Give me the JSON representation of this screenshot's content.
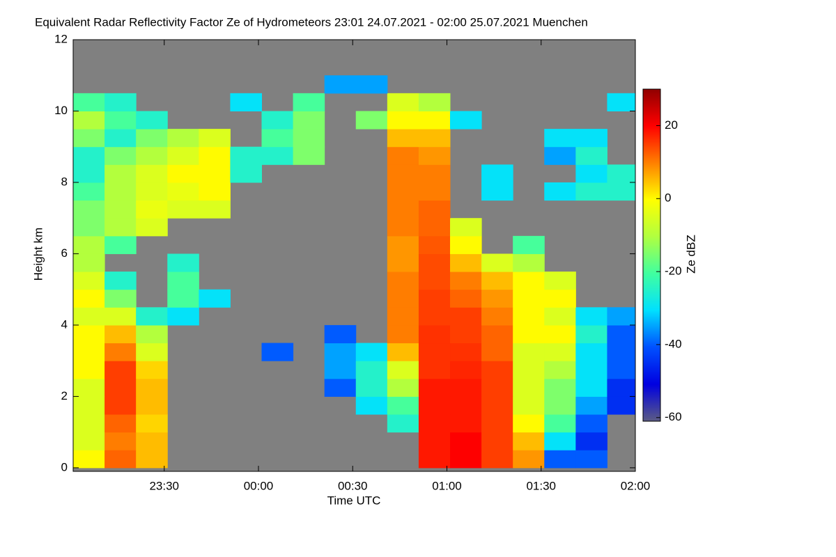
{
  "chart_data": {
    "type": "heatmap",
    "title": "Equivalent Radar Reflectivity Factor Ze of Hydrometeors   23:01 24.07.2021 - 02:00 25.07.2021 Muenchen",
    "x_label": "Time UTC",
    "y_label": "Height km",
    "colorbar_label": "Ze dBZ",
    "xlim": [
      "23:01",
      "02:00"
    ],
    "xticks": [
      "23:30",
      "00:00",
      "00:30",
      "01:00",
      "01:30",
      "02:00"
    ],
    "ylim": [
      -0.1,
      12
    ],
    "yticks": [
      0,
      2,
      4,
      6,
      8,
      10,
      12
    ],
    "zlim": [
      -61,
      30
    ],
    "zticks": [
      -60,
      -40,
      -20,
      0,
      20
    ],
    "background": "#808080",
    "colorscale": [
      "#5c5c84",
      "#0000e0",
      "#0050ff",
      "#00e0ff",
      "#40ffa0",
      "#b0ff40",
      "#ffff00",
      "#ff8000",
      "#ff0000",
      "#900000"
    ],
    "x": [
      "23:06",
      "23:16",
      "23:26",
      "23:36",
      "23:46",
      "23:56",
      "00:06",
      "00:16",
      "00:26",
      "00:36",
      "00:46",
      "00:56",
      "01:06",
      "01:16",
      "01:26",
      "01:36",
      "01:46",
      "01:56"
    ],
    "y": [
      0.25,
      0.75,
      1.25,
      1.75,
      2.25,
      2.75,
      3.25,
      3.75,
      4.25,
      4.75,
      5.25,
      5.75,
      6.25,
      6.75,
      7.25,
      7.75,
      8.25,
      8.75,
      9.25,
      9.75,
      10.25,
      10.75,
      11.25,
      11.75
    ],
    "z": [
      [
        0,
        12,
        5,
        null,
        null,
        null,
        null,
        null,
        null,
        null,
        null,
        18,
        20,
        15,
        8,
        -40,
        -40,
        null
      ],
      [
        -5,
        10,
        5,
        null,
        null,
        null,
        null,
        null,
        null,
        null,
        null,
        18,
        20,
        15,
        5,
        -30,
        -45,
        null
      ],
      [
        -5,
        12,
        3,
        null,
        null,
        null,
        null,
        null,
        null,
        null,
        -25,
        18,
        18,
        15,
        0,
        -20,
        -40,
        null
      ],
      [
        -5,
        15,
        5,
        null,
        null,
        null,
        null,
        null,
        null,
        -30,
        -20,
        18,
        18,
        15,
        -5,
        -15,
        -35,
        -45
      ],
      [
        -5,
        15,
        5,
        null,
        null,
        null,
        null,
        null,
        -40,
        -25,
        -10,
        18,
        18,
        15,
        -5,
        -15,
        -30,
        -45
      ],
      [
        0,
        15,
        3,
        null,
        null,
        null,
        null,
        null,
        -35,
        -25,
        -5,
        16,
        17,
        15,
        -5,
        -10,
        -30,
        -40
      ],
      [
        0,
        10,
        -5,
        null,
        null,
        null,
        -40,
        null,
        -35,
        -30,
        5,
        16,
        16,
        12,
        -5,
        -5,
        -30,
        -40
      ],
      [
        0,
        5,
        -10,
        null,
        null,
        null,
        null,
        null,
        -40,
        null,
        10,
        16,
        15,
        12,
        0,
        0,
        -25,
        -40
      ],
      [
        -5,
        -5,
        -25,
        -30,
        null,
        null,
        null,
        null,
        null,
        null,
        10,
        15,
        15,
        10,
        0,
        -5,
        -30,
        -35
      ],
      [
        0,
        -15,
        null,
        -20,
        -30,
        null,
        null,
        null,
        null,
        null,
        10,
        15,
        12,
        8,
        0,
        0,
        null,
        null
      ],
      [
        -5,
        -25,
        null,
        -20,
        null,
        null,
        null,
        null,
        null,
        null,
        10,
        14,
        10,
        5,
        0,
        -5,
        null,
        null
      ],
      [
        -10,
        null,
        null,
        -25,
        null,
        null,
        null,
        null,
        null,
        null,
        8,
        14,
        5,
        -5,
        -10,
        null,
        null,
        null
      ],
      [
        -10,
        -20,
        null,
        null,
        null,
        null,
        null,
        null,
        null,
        null,
        8,
        13,
        0,
        null,
        -20,
        null,
        null,
        null
      ],
      [
        -15,
        -10,
        -5,
        null,
        null,
        null,
        null,
        null,
        null,
        null,
        10,
        12,
        -5,
        null,
        null,
        null,
        null,
        null
      ],
      [
        -15,
        -10,
        -3,
        -5,
        -5,
        null,
        null,
        null,
        null,
        null,
        10,
        12,
        null,
        null,
        null,
        null,
        null,
        null
      ],
      [
        -20,
        -10,
        -5,
        -3,
        0,
        null,
        null,
        null,
        null,
        null,
        10,
        10,
        null,
        -30,
        null,
        -30,
        -25,
        -25
      ],
      [
        -25,
        -10,
        -5,
        0,
        0,
        -25,
        null,
        null,
        null,
        null,
        10,
        10,
        null,
        -30,
        null,
        null,
        -30,
        -25
      ],
      [
        -25,
        -15,
        -10,
        -5,
        0,
        -25,
        -25,
        -15,
        null,
        null,
        10,
        8,
        null,
        null,
        null,
        -35,
        -25,
        null
      ],
      [
        -15,
        -25,
        -15,
        -10,
        -5,
        null,
        -20,
        -15,
        null,
        null,
        5,
        5,
        null,
        null,
        null,
        -30,
        -30,
        null
      ],
      [
        -10,
        -20,
        -25,
        null,
        null,
        null,
        -25,
        -15,
        null,
        -15,
        0,
        0,
        -30,
        null,
        null,
        null,
        null,
        null
      ],
      [
        -20,
        -25,
        null,
        null,
        null,
        -30,
        null,
        -20,
        null,
        null,
        -5,
        -10,
        null,
        null,
        null,
        null,
        null,
        -30
      ],
      [
        null,
        null,
        null,
        null,
        null,
        null,
        null,
        null,
        -35,
        -35,
        null,
        null,
        null,
        null,
        null,
        null,
        null,
        null
      ],
      [
        null,
        null,
        null,
        null,
        null,
        null,
        null,
        null,
        null,
        null,
        null,
        null,
        null,
        null,
        null,
        null,
        null,
        null
      ],
      [
        null,
        null,
        null,
        null,
        null,
        null,
        null,
        null,
        null,
        null,
        null,
        null,
        null,
        null,
        null,
        null,
        null,
        null
      ]
    ]
  }
}
